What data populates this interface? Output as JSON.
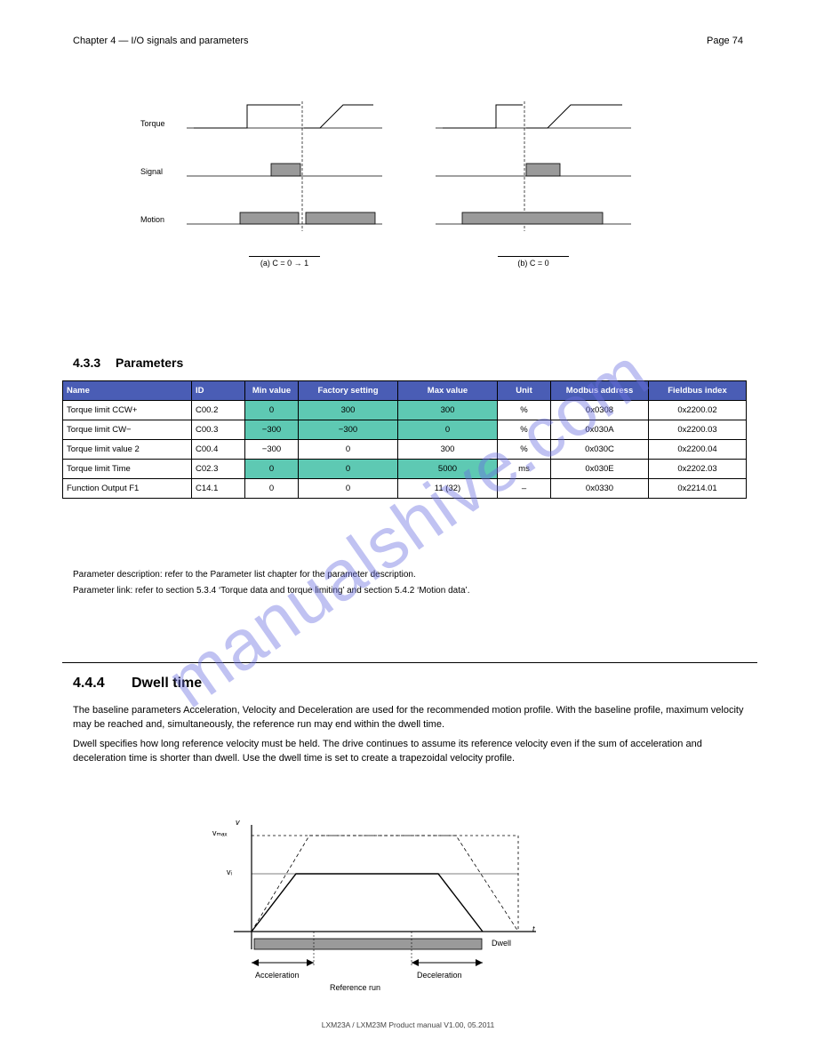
{
  "page": {
    "number": "74",
    "header_right": "Page"
  },
  "header": {
    "doc": "Chapter 4 — I/O signals and parameters"
  },
  "diagram": {
    "labels": {
      "torque": "Torque",
      "signal": "Signal",
      "motion": "Motion",
      "caption_a": "(a) C = 0 → 1",
      "caption_b": "(b) C = 0"
    }
  },
  "section433": {
    "num": "4.3.3",
    "title": "Parameters"
  },
  "table": {
    "headers": [
      "Name",
      "ID",
      "Min value",
      "Factory setting",
      "Max value",
      "Unit",
      "Modbus address",
      "Fieldbus index"
    ],
    "rows": [
      {
        "cells": [
          "Torque limit CCW+",
          "C00.2",
          "0",
          "300",
          "300",
          "%",
          "0x0308",
          "0x2200.02"
        ],
        "hl": [
          2,
          3,
          4
        ]
      },
      {
        "cells": [
          "Torque limit CW−",
          "C00.3",
          "−300",
          "−300",
          "0",
          "%",
          "0x030A",
          "0x2200.03"
        ],
        "hl": [
          2,
          3,
          4
        ]
      },
      {
        "cells": [
          "Torque limit value 2",
          "C00.4",
          "−300",
          "0",
          "300",
          "%",
          "0x030C",
          "0x2200.04"
        ],
        "hl": []
      },
      {
        "cells": [
          "Torque limit Time",
          "C02.3",
          "0",
          "0",
          "5000",
          "ms",
          "0x030E",
          "0x2202.03"
        ],
        "hl": [
          2,
          3,
          4
        ]
      },
      {
        "cells": [
          "Function Output F1",
          "C14.1",
          "0",
          "0",
          "11 (32)",
          "–",
          "0x0330",
          "0x2214.01"
        ],
        "hl": []
      }
    ]
  },
  "after_table": {
    "line1": "Parameter description: refer to the Parameter list chapter for the parameter description.",
    "line2": "Parameter link: refer to section 5.3.4 ‘Torque data and torque limiting’ and section 5.4.2 ‘Motion data’."
  },
  "section444": {
    "num": "4.4.4",
    "title": "Dwell time",
    "p1": "The baseline parameters Acceleration, Velocity and Deceleration are used for the recommended motion profile. With the baseline profile, maximum velocity may be reached and, simultaneously, the reference run may end within the dwell time.",
    "p2": "Dwell specifies how long reference velocity must be held. The drive continues to assume its reference velocity even if the sum of acceleration and deceleration time is shorter than dwell. Use the dwell time is set to create a trapezoidal velocity profile."
  },
  "trap": {
    "v": "v",
    "t": "t",
    "vi": "vᵢ",
    "vmax": "vₘₐₓ",
    "acc": "Acceleration",
    "dec": "Deceleration",
    "dwell": "Dwell",
    "ref_run": "Reference run"
  },
  "footer": "LXM23A / LXM23M Product manual V1.00, 05.2011"
}
